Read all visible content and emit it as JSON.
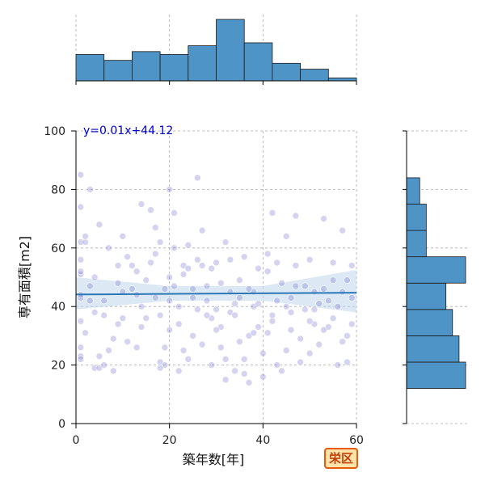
{
  "chart_data": {
    "type": "scatter",
    "xlabel": "築年数[年]",
    "ylabel": "専有面積[m2]",
    "xlim": [
      0,
      60
    ],
    "ylim": [
      0,
      100
    ],
    "xticks": [
      "0",
      "20",
      "40",
      "60"
    ],
    "yticks": [
      "0",
      "20",
      "40",
      "60",
      "80",
      "100"
    ],
    "grid": true,
    "annotation": "y=0.01x+44.12",
    "regression": {
      "slope": 0.01,
      "intercept": 44.12,
      "ci_band_at_x": [
        [
          0,
          39,
          50
        ],
        [
          20,
          42,
          47
        ],
        [
          40,
          42,
          47
        ],
        [
          60,
          38,
          52.5
        ]
      ]
    },
    "badge": "栄区",
    "colors": {
      "points": "#6666cc",
      "hist": "#4f94c6",
      "line": "#2a78b8",
      "band": "#bfd6ea",
      "annotation": "#0000cc"
    },
    "x_hist": {
      "bin_edges": [
        0,
        6,
        12,
        18,
        24,
        30,
        36,
        42,
        48,
        54,
        60
      ],
      "counts": [
        9,
        7,
        10,
        9,
        12,
        21,
        13,
        6,
        4,
        1
      ]
    },
    "y_hist": {
      "bin_edges": [
        12,
        21,
        30,
        39,
        48,
        57,
        66,
        75,
        84
      ],
      "counts": [
        9,
        8,
        7,
        6,
        9,
        3,
        3,
        2
      ]
    },
    "points": [
      [
        1,
        23
      ],
      [
        1,
        22
      ],
      [
        1,
        26
      ],
      [
        1,
        35
      ],
      [
        1,
        43
      ],
      [
        1,
        44
      ],
      [
        1,
        51
      ],
      [
        1,
        52
      ],
      [
        1,
        56
      ],
      [
        1,
        62
      ],
      [
        1,
        74
      ],
      [
        1,
        85
      ],
      [
        2,
        62
      ],
      [
        2,
        64
      ],
      [
        3,
        47
      ],
      [
        3,
        42
      ],
      [
        4,
        19
      ],
      [
        4,
        38
      ],
      [
        4,
        50
      ],
      [
        5,
        23
      ],
      [
        5,
        19
      ],
      [
        6,
        20
      ],
      [
        6,
        42
      ],
      [
        7,
        25
      ],
      [
        7,
        60
      ],
      [
        8,
        18
      ],
      [
        8,
        29
      ],
      [
        9,
        34
      ],
      [
        9,
        54
      ],
      [
        10,
        36
      ],
      [
        10,
        64
      ],
      [
        11,
        28
      ],
      [
        12,
        54
      ],
      [
        12,
        46
      ],
      [
        13,
        52
      ],
      [
        13,
        26
      ],
      [
        14,
        75
      ],
      [
        14,
        40
      ],
      [
        15,
        36
      ],
      [
        16,
        73
      ],
      [
        16,
        55
      ],
      [
        17,
        43
      ],
      [
        17,
        67
      ],
      [
        18,
        21
      ],
      [
        18,
        62
      ],
      [
        19,
        20
      ],
      [
        19,
        26
      ],
      [
        20,
        32
      ],
      [
        20,
        42
      ],
      [
        20,
        50
      ],
      [
        21,
        72
      ],
      [
        21,
        60
      ],
      [
        22,
        18
      ],
      [
        22,
        40
      ],
      [
        23,
        54
      ],
      [
        23,
        25
      ],
      [
        24,
        61
      ],
      [
        24,
        22
      ],
      [
        25,
        46
      ],
      [
        25,
        30
      ],
      [
        26,
        56
      ],
      [
        26,
        84
      ],
      [
        27,
        27
      ],
      [
        27,
        66
      ],
      [
        28,
        47
      ],
      [
        28,
        42
      ],
      [
        29,
        20
      ],
      [
        29,
        53
      ],
      [
        30,
        39
      ],
      [
        30,
        55
      ],
      [
        31,
        26
      ],
      [
        31,
        33
      ],
      [
        32,
        22
      ],
      [
        32,
        62
      ],
      [
        33,
        45
      ],
      [
        33,
        38
      ],
      [
        34,
        18
      ],
      [
        34,
        41
      ],
      [
        35,
        28
      ],
      [
        35,
        49
      ],
      [
        36,
        22
      ],
      [
        36,
        57
      ],
      [
        37,
        14
      ],
      [
        37,
        30
      ],
      [
        38,
        45
      ],
      [
        38,
        40
      ],
      [
        39,
        53
      ],
      [
        39,
        33
      ],
      [
        40,
        16
      ],
      [
        40,
        24
      ],
      [
        41,
        31
      ],
      [
        41,
        58
      ],
      [
        42,
        72
      ],
      [
        42,
        37
      ],
      [
        43,
        42
      ],
      [
        43,
        20
      ],
      [
        44,
        48
      ],
      [
        44,
        18
      ],
      [
        45,
        25
      ],
      [
        45,
        64
      ],
      [
        46,
        32
      ],
      [
        46,
        43
      ],
      [
        47,
        47
      ],
      [
        47,
        71
      ],
      [
        48,
        21
      ],
      [
        48,
        29
      ],
      [
        49,
        39
      ],
      [
        50,
        56
      ],
      [
        50,
        24
      ],
      [
        51,
        34
      ],
      [
        51,
        45
      ],
      [
        52,
        41
      ],
      [
        52,
        27
      ],
      [
        53,
        46
      ],
      [
        53,
        70
      ],
      [
        54,
        33
      ],
      [
        55,
        36
      ],
      [
        55,
        55
      ],
      [
        56,
        20
      ],
      [
        56,
        40
      ],
      [
        57,
        66
      ],
      [
        57,
        45
      ],
      [
        58,
        49
      ],
      [
        58,
        21
      ],
      [
        59,
        43
      ],
      [
        59,
        34
      ],
      [
        3,
        80
      ],
      [
        5,
        68
      ],
      [
        9,
        48
      ],
      [
        11,
        57
      ],
      [
        13,
        44
      ],
      [
        15,
        49
      ],
      [
        17,
        58
      ],
      [
        19,
        46
      ],
      [
        21,
        47
      ],
      [
        23,
        51
      ],
      [
        25,
        43
      ],
      [
        27,
        54
      ],
      [
        29,
        36
      ],
      [
        31,
        48
      ],
      [
        33,
        56
      ],
      [
        35,
        43
      ],
      [
        37,
        46
      ],
      [
        39,
        41
      ],
      [
        41,
        52
      ],
      [
        43,
        55
      ],
      [
        45,
        40
      ],
      [
        47,
        54
      ],
      [
        49,
        47
      ],
      [
        51,
        39
      ],
      [
        53,
        32
      ],
      [
        55,
        49
      ],
      [
        57,
        28
      ],
      [
        59,
        54
      ],
      [
        2,
        31
      ],
      [
        6,
        37
      ],
      [
        10,
        45
      ],
      [
        14,
        33
      ],
      [
        18,
        37
      ],
      [
        22,
        34
      ],
      [
        26,
        39
      ],
      [
        30,
        32
      ],
      [
        34,
        37
      ],
      [
        38,
        31
      ],
      [
        42,
        35
      ],
      [
        46,
        38
      ],
      [
        50,
        35
      ],
      [
        54,
        42
      ],
      [
        58,
        30
      ],
      [
        24,
        53
      ],
      [
        32,
        15
      ],
      [
        36,
        17
      ],
      [
        28,
        37
      ],
      [
        20,
        80
      ],
      [
        18,
        19
      ]
    ]
  }
}
